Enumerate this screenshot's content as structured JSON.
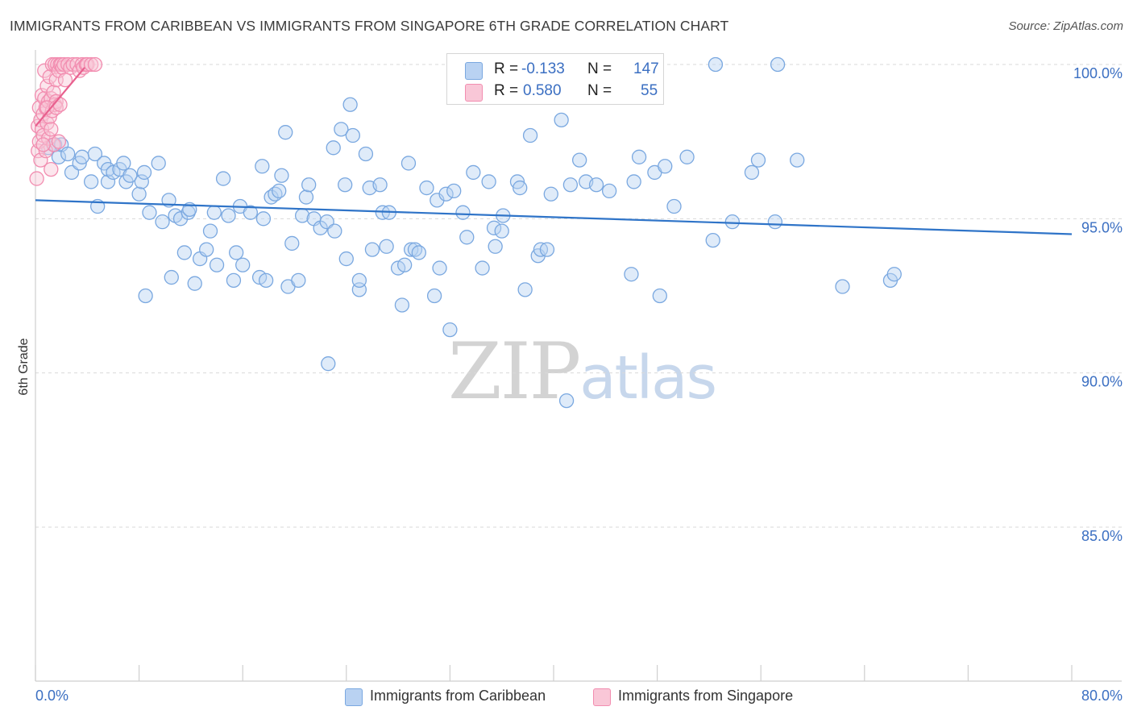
{
  "title": "IMMIGRANTS FROM CARIBBEAN VS IMMIGRANTS FROM SINGAPORE 6TH GRADE CORRELATION CHART",
  "source": "Source: ZipAtlas.com",
  "watermark": {
    "zip": "ZIP",
    "atlas": "atlas"
  },
  "colors": {
    "blue": "#7aa8e0",
    "blue_fill": "#b9d2f2",
    "blue_line": "#2f74c8",
    "pink": "#f28db0",
    "pink_fill": "#f9c7d7",
    "pink_line": "#e8608e",
    "axis_text": "#3b6fc2",
    "grid": "#d9d9d9"
  },
  "legend": {
    "r_label": "R =",
    "n_label": "N =",
    "rows": [
      {
        "r": "-0.133",
        "n": "147"
      },
      {
        "r": "0.580",
        "n": "55"
      }
    ]
  },
  "bottom_legend": [
    "Immigrants from Caribbean",
    "Immigrants from Singapore"
  ],
  "x_axis": {
    "min_label": "0.0%",
    "max_label": "80.0%"
  },
  "chart_data": {
    "type": "scatter",
    "title": "IMMIGRANTS FROM CARIBBEAN VS IMMIGRANTS FROM SINGAPORE 6TH GRADE CORRELATION CHART",
    "xlabel": "",
    "ylabel": "6th Grade",
    "xlim": [
      0,
      80
    ],
    "ylim": [
      80.5,
      100.5
    ],
    "y_ticks": [
      85,
      90,
      95,
      100
    ],
    "y_tick_labels": [
      "85.0%",
      "90.0%",
      "95.0%",
      "100.0%"
    ],
    "x_ticks": [
      0,
      8,
      16,
      24,
      32,
      40,
      48,
      56,
      64,
      72,
      80
    ],
    "grid": true,
    "series": [
      {
        "name": "Immigrants from Caribbean",
        "color": "#7aa8e0",
        "trend": {
          "x": [
            0,
            80
          ],
          "y": [
            95.6,
            94.5
          ]
        },
        "points": [
          [
            1.0,
            97.3
          ],
          [
            1.5,
            97.4
          ],
          [
            1.8,
            97.0
          ],
          [
            2.0,
            97.4
          ],
          [
            2.5,
            97.1
          ],
          [
            2.8,
            96.5
          ],
          [
            3.4,
            96.8
          ],
          [
            3.6,
            97.0
          ],
          [
            4.3,
            96.2
          ],
          [
            4.6,
            97.1
          ],
          [
            4.8,
            95.4
          ],
          [
            5.3,
            96.8
          ],
          [
            5.6,
            96.2
          ],
          [
            5.6,
            96.6
          ],
          [
            6.0,
            96.5
          ],
          [
            6.5,
            96.6
          ],
          [
            6.8,
            96.8
          ],
          [
            7.0,
            96.2
          ],
          [
            7.3,
            96.4
          ],
          [
            8.0,
            95.8
          ],
          [
            8.2,
            96.2
          ],
          [
            8.4,
            96.5
          ],
          [
            8.8,
            95.2
          ],
          [
            9.5,
            96.8
          ],
          [
            8.5,
            92.5
          ],
          [
            10.5,
            93.1
          ],
          [
            9.8,
            94.9
          ],
          [
            10.3,
            95.6
          ],
          [
            10.8,
            95.1
          ],
          [
            11.2,
            95.0
          ],
          [
            11.5,
            93.9
          ],
          [
            11.8,
            95.2
          ],
          [
            11.9,
            95.3
          ],
          [
            12.3,
            92.9
          ],
          [
            12.7,
            93.7
          ],
          [
            13.2,
            94.0
          ],
          [
            13.5,
            94.6
          ],
          [
            13.8,
            95.2
          ],
          [
            14.0,
            93.5
          ],
          [
            14.5,
            96.3
          ],
          [
            14.9,
            95.1
          ],
          [
            15.3,
            93.0
          ],
          [
            15.5,
            93.9
          ],
          [
            15.8,
            95.4
          ],
          [
            16.0,
            93.5
          ],
          [
            16.6,
            95.2
          ],
          [
            17.3,
            93.1
          ],
          [
            17.6,
            95.0
          ],
          [
            17.5,
            96.7
          ],
          [
            17.8,
            93.0
          ],
          [
            18.2,
            95.7
          ],
          [
            18.5,
            95.8
          ],
          [
            18.8,
            95.9
          ],
          [
            19.0,
            96.4
          ],
          [
            19.3,
            97.8
          ],
          [
            19.5,
            92.8
          ],
          [
            19.8,
            94.2
          ],
          [
            20.3,
            93.0
          ],
          [
            20.6,
            95.1
          ],
          [
            20.9,
            95.7
          ],
          [
            21.1,
            96.1
          ],
          [
            21.5,
            95.0
          ],
          [
            22.0,
            94.7
          ],
          [
            22.5,
            94.9
          ],
          [
            22.6,
            90.3
          ],
          [
            23.1,
            94.6
          ],
          [
            23.0,
            97.3
          ],
          [
            23.6,
            97.9
          ],
          [
            23.9,
            96.1
          ],
          [
            24.0,
            93.7
          ],
          [
            24.3,
            98.7
          ],
          [
            24.5,
            97.7
          ],
          [
            25.0,
            92.7
          ],
          [
            25.0,
            93.0
          ],
          [
            25.5,
            97.1
          ],
          [
            25.8,
            96.0
          ],
          [
            26.0,
            94.0
          ],
          [
            26.6,
            96.1
          ],
          [
            26.8,
            95.2
          ],
          [
            27.1,
            94.1
          ],
          [
            27.3,
            95.2
          ],
          [
            28.0,
            93.4
          ],
          [
            28.3,
            92.2
          ],
          [
            28.5,
            93.5
          ],
          [
            28.8,
            96.8
          ],
          [
            29.0,
            94.0
          ],
          [
            29.3,
            94.0
          ],
          [
            29.6,
            93.9
          ],
          [
            30.2,
            96.0
          ],
          [
            30.8,
            92.5
          ],
          [
            31.0,
            95.6
          ],
          [
            31.2,
            93.4
          ],
          [
            31.7,
            95.8
          ],
          [
            32.0,
            91.4
          ],
          [
            32.3,
            95.9
          ],
          [
            33.0,
            95.2
          ],
          [
            33.3,
            94.4
          ],
          [
            33.8,
            96.5
          ],
          [
            34.5,
            93.4
          ],
          [
            35.0,
            96.2
          ],
          [
            35.4,
            94.7
          ],
          [
            35.5,
            94.1
          ],
          [
            36.0,
            94.6
          ],
          [
            36.1,
            95.1
          ],
          [
            37.2,
            96.2
          ],
          [
            37.4,
            96.0
          ],
          [
            37.8,
            92.7
          ],
          [
            38.2,
            97.7
          ],
          [
            38.8,
            93.8
          ],
          [
            39.0,
            94.0
          ],
          [
            39.5,
            94.0
          ],
          [
            39.8,
            95.8
          ],
          [
            40.6,
            98.2
          ],
          [
            41.0,
            89.1
          ],
          [
            41.3,
            96.1
          ],
          [
            42.0,
            96.9
          ],
          [
            42.5,
            96.2
          ],
          [
            43.3,
            96.1
          ],
          [
            44.3,
            95.9
          ],
          [
            46.0,
            93.2
          ],
          [
            46.2,
            96.2
          ],
          [
            46.6,
            97.0
          ],
          [
            47.8,
            96.5
          ],
          [
            48.2,
            92.5
          ],
          [
            48.6,
            96.7
          ],
          [
            49.3,
            95.4
          ],
          [
            50.3,
            97.0
          ],
          [
            52.3,
            94.3
          ],
          [
            52.5,
            100.0
          ],
          [
            53.8,
            94.9
          ],
          [
            55.3,
            96.5
          ],
          [
            55.8,
            96.9
          ],
          [
            57.1,
            94.9
          ],
          [
            57.3,
            100.0
          ],
          [
            58.8,
            96.9
          ],
          [
            62.3,
            92.8
          ],
          [
            66.0,
            93.0
          ],
          [
            66.3,
            93.2
          ]
        ]
      },
      {
        "name": "Immigrants from Singapore",
        "color": "#f28db0",
        "trend": {
          "x": [
            0,
            3.8
          ],
          "y": [
            98.0,
            99.9
          ]
        },
        "points": [
          [
            0.1,
            96.3
          ],
          [
            0.2,
            97.2
          ],
          [
            0.2,
            98.0
          ],
          [
            0.3,
            97.5
          ],
          [
            0.3,
            98.6
          ],
          [
            0.4,
            96.9
          ],
          [
            0.4,
            98.2
          ],
          [
            0.5,
            97.9
          ],
          [
            0.5,
            99.0
          ],
          [
            0.6,
            97.7
          ],
          [
            0.6,
            98.4
          ],
          [
            0.7,
            99.8
          ],
          [
            0.7,
            98.9
          ],
          [
            0.8,
            97.2
          ],
          [
            0.8,
            98.6
          ],
          [
            0.9,
            98.1
          ],
          [
            0.9,
            99.3
          ],
          [
            1.0,
            97.6
          ],
          [
            1.0,
            98.8
          ],
          [
            1.1,
            98.3
          ],
          [
            1.1,
            99.6
          ],
          [
            1.2,
            96.6
          ],
          [
            1.2,
            98.9
          ],
          [
            1.3,
            98.5
          ],
          [
            1.3,
            100.0
          ],
          [
            1.4,
            97.4
          ],
          [
            1.4,
            99.1
          ],
          [
            1.5,
            98.7
          ],
          [
            1.5,
            100.0
          ],
          [
            1.6,
            99.5
          ],
          [
            1.6,
            98.8
          ],
          [
            1.7,
            100.0
          ],
          [
            1.8,
            99.8
          ],
          [
            1.8,
            97.5
          ],
          [
            1.9,
            100.0
          ],
          [
            2.0,
            100.0
          ],
          [
            2.1,
            99.9
          ],
          [
            2.2,
            100.0
          ],
          [
            2.3,
            99.5
          ],
          [
            2.5,
            100.0
          ],
          [
            2.7,
            99.9
          ],
          [
            2.9,
            100.0
          ],
          [
            3.2,
            100.0
          ],
          [
            3.4,
            99.8
          ],
          [
            3.6,
            100.0
          ],
          [
            3.7,
            99.9
          ],
          [
            3.9,
            100.0
          ],
          [
            4.0,
            100.0
          ],
          [
            4.3,
            100.0
          ],
          [
            4.6,
            100.0
          ],
          [
            1.2,
            97.9
          ],
          [
            0.9,
            98.6
          ],
          [
            1.6,
            98.6
          ],
          [
            0.6,
            97.4
          ],
          [
            1.9,
            98.7
          ]
        ]
      }
    ]
  }
}
